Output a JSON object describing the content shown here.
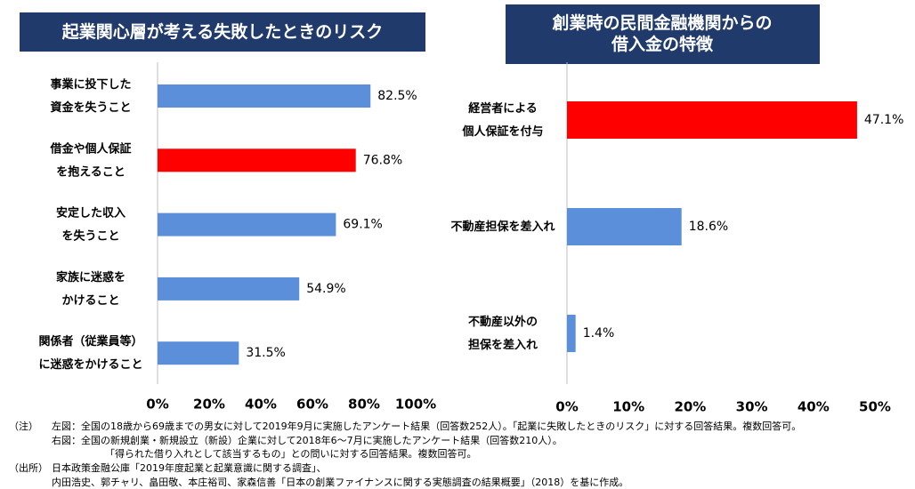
{
  "chart_data": [
    {
      "type": "barh",
      "title": "起業関心層が考える失敗したときのリスク",
      "categories": [
        "事業に投下した\n資金を失うこと",
        "借金や個人保証\nを抱えること",
        "安定した収入\nを失うこと",
        "家族に迷惑を\nかけること",
        "関係者（従業員等）\nに迷惑をかけること"
      ],
      "values": [
        82.5,
        76.8,
        69.1,
        54.9,
        31.5
      ],
      "value_labels": [
        "82.5%",
        "76.8%",
        "69.1%",
        "54.9%",
        "31.5%"
      ],
      "colors": [
        "#5b8fd9",
        "#ff0000",
        "#5b8fd9",
        "#5b8fd9",
        "#5b8fd9"
      ],
      "xlim": [
        0,
        100
      ],
      "xticks": [
        {
          "value": 0,
          "label": "0%"
        },
        {
          "value": 20,
          "label": "20%"
        },
        {
          "value": 40,
          "label": "40%"
        },
        {
          "value": 60,
          "label": "60%"
        },
        {
          "value": 80,
          "label": "80%"
        },
        {
          "value": 100,
          "label": "100%"
        }
      ],
      "grid": false
    },
    {
      "type": "barh",
      "title": "創業時の民間金融機関からの\n借入金の特徴",
      "categories": [
        "経営者による\n個人保証を付与",
        "不動産担保を差入れ",
        "不動産以外の\n担保を差入れ"
      ],
      "values": [
        47.1,
        18.6,
        1.4
      ],
      "value_labels": [
        "47.1%",
        "18.6%",
        "1.4%"
      ],
      "colors": [
        "#ff0000",
        "#5b8fd9",
        "#5b8fd9"
      ],
      "xlim": [
        0,
        50
      ],
      "xticks": [
        {
          "value": 0,
          "label": "0%"
        },
        {
          "value": 10,
          "label": "10%"
        },
        {
          "value": 20,
          "label": "20%"
        },
        {
          "value": 30,
          "label": "30%"
        },
        {
          "value": 40,
          "label": "40%"
        },
        {
          "value": 50,
          "label": "50%"
        }
      ],
      "grid": false
    }
  ],
  "notes": {
    "note_label": "（注）",
    "note_lines": [
      "左図：全国の18歳から69歳までの男女に対して2019年9月に実施したアンケート結果（回答数252人）。「起業に失敗したときのリスク」に対する回答結果。複数回答可。",
      "右図：全国の新規創業・新規設立（新設）企業に対して2018年6～7月に実施したアンケート結果（回答数210人）。",
      "「得られた借り入れとして該当するもの」との問いに対する回答結果。複数回答可。"
    ],
    "source_label": "（出所）",
    "source_lines": [
      "日本政策金融公庫「2019年度起業と起業意識に関する調査」、",
      "内田浩史、郭チャリ、畠田敬、本庄裕司、家森信善「日本の創業ファイナンスに関する実態調査の結果概要」（2018）を基に作成。"
    ]
  }
}
